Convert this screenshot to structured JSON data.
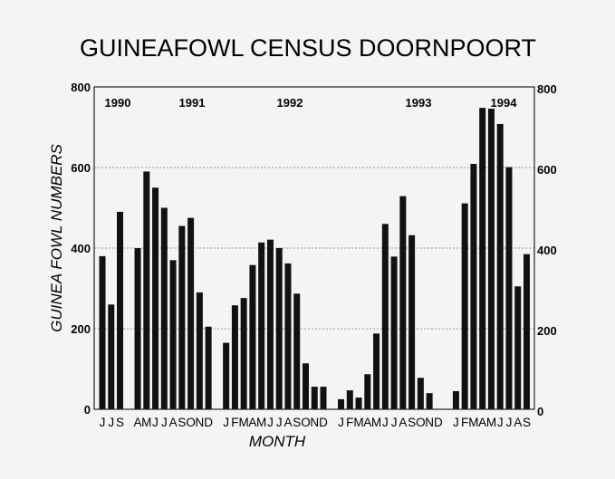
{
  "chart_data": {
    "type": "bar",
    "title": "GUINEAFOWL CENSUS DOORNPOORT",
    "xlabel": "MONTH",
    "ylabel": "GUINEA FOWL NUMBERS",
    "ylim": [
      0,
      800
    ],
    "yticks": [
      0,
      200,
      400,
      600,
      800
    ],
    "right_axis_ticks": [
      0,
      200,
      400,
      600,
      800
    ],
    "grid": "horizontal dashed at 200, 400, 600",
    "bar_color": "#111111",
    "years": [
      {
        "label": "1990",
        "slot": 0
      },
      {
        "label": "1991",
        "slot": 9
      },
      {
        "label": "1992",
        "slot": 20
      },
      {
        "label": "1993",
        "slot": 35
      },
      {
        "label": "1994",
        "slot": 45
      }
    ],
    "categories": [
      "J",
      "J",
      "S",
      "",
      "A",
      "M",
      "J",
      "J",
      "A",
      "S",
      "O",
      "N",
      "D",
      "",
      "J",
      "F",
      "M",
      "A",
      "M",
      "J",
      "J",
      "A",
      "S",
      "O",
      "N",
      "D",
      "",
      "J",
      "F",
      "M",
      "A",
      "M",
      "J",
      "J",
      "A",
      "S",
      "O",
      "N",
      "D",
      "",
      "J",
      "F",
      "M",
      "A",
      "M",
      "J",
      "J",
      "A",
      "S"
    ],
    "values": [
      380,
      260,
      490,
      null,
      400,
      590,
      550,
      500,
      370,
      455,
      475,
      290,
      205,
      null,
      165,
      258,
      276,
      358,
      414,
      421,
      400,
      362,
      287,
      114,
      56,
      56,
      null,
      25,
      47,
      29,
      87,
      188,
      460,
      379,
      529,
      432,
      78,
      40,
      0,
      null,
      45,
      511,
      609,
      748,
      746,
      708,
      601,
      305,
      385
    ]
  }
}
